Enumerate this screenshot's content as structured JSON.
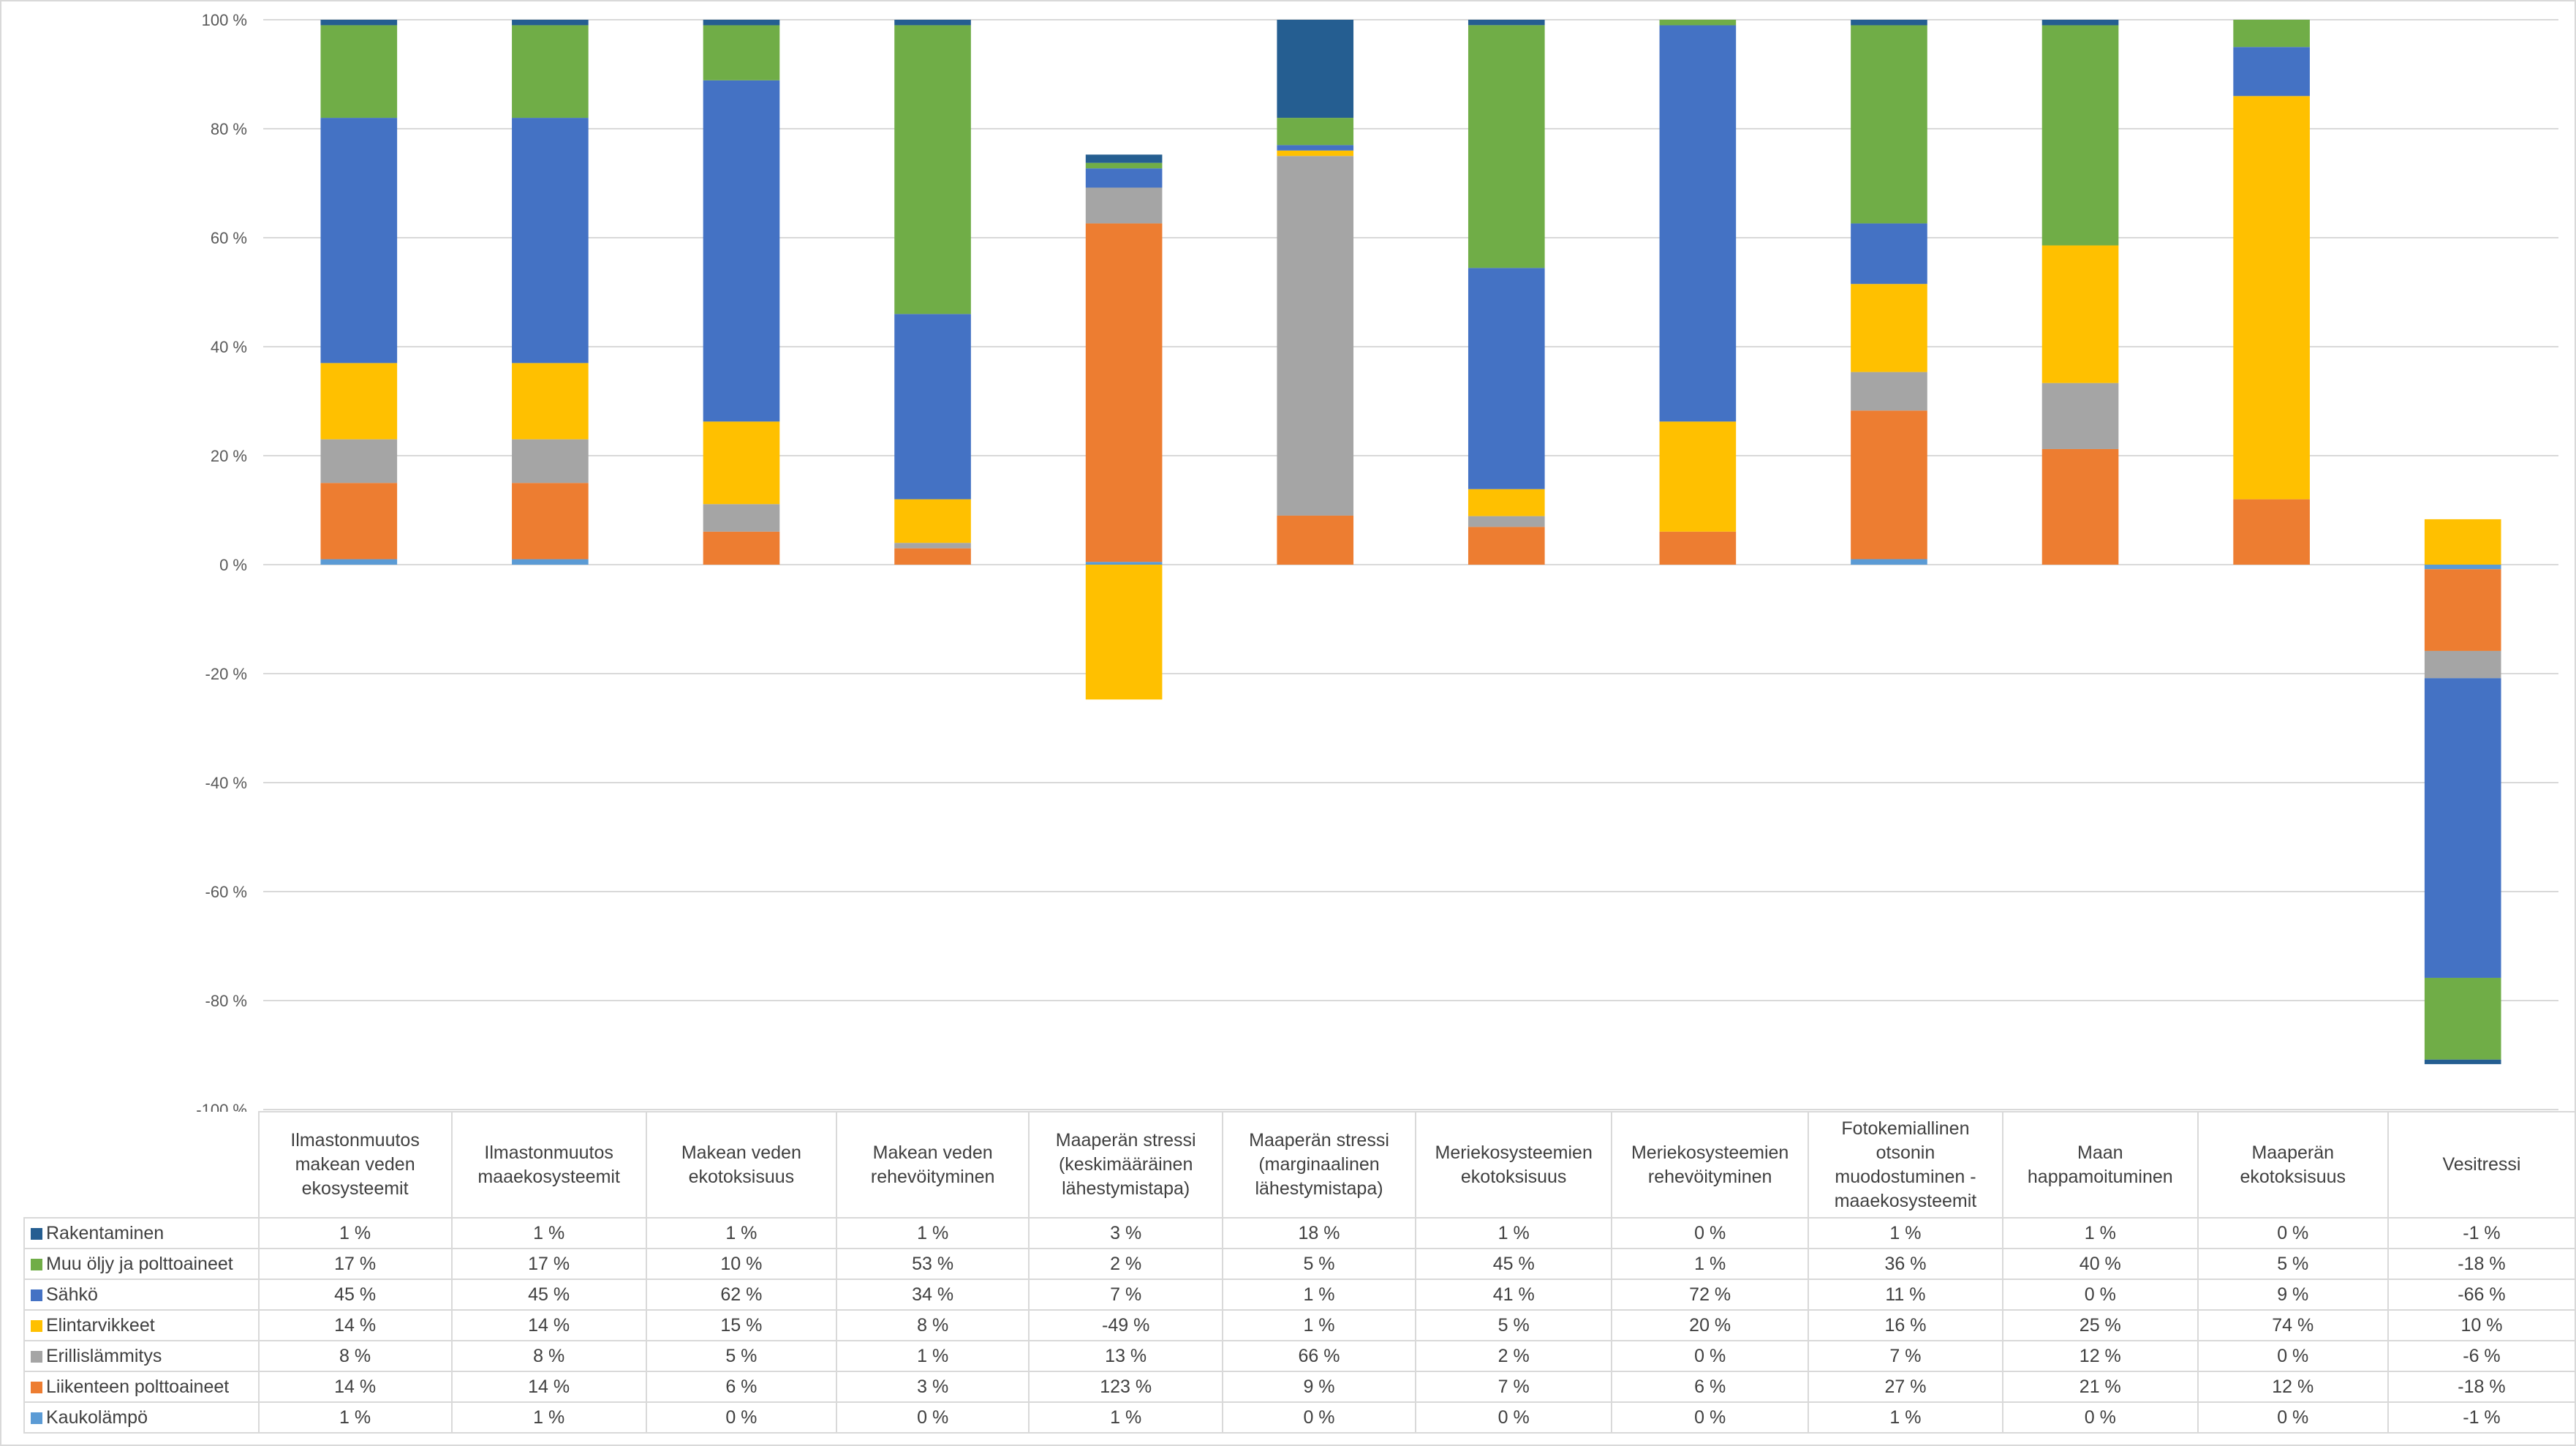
{
  "chart_data": {
    "type": "bar",
    "stacked": true,
    "normalization": "each category's segments plotted as value divided by the sum of absolute values in that category",
    "title": "",
    "xlabel": "",
    "ylabel": "",
    "ylim": [
      -100,
      100
    ],
    "yticks": [
      -100,
      -80,
      -60,
      -40,
      -20,
      0,
      20,
      40,
      60,
      80,
      100
    ],
    "ytick_labels": [
      "-100 %",
      "-80 %",
      "-60 %",
      "-40 %",
      "-20 %",
      "0 %",
      "20 %",
      "40 %",
      "60 %",
      "80 %",
      "100 %"
    ],
    "grid": true,
    "legend_placement": "data-table-left",
    "categories": [
      "Ilmastonmuutos makean veden ekosysteemit",
      "Ilmastonmuutos maaekosysteemit",
      "Makean veden ekotoksisuus",
      "Makean veden rehevöityminen",
      "Maaperän stressi (keskimääräinen lähestymistapa)",
      "Maaperän stressi (marginaalinen lähestymistapa)",
      "Meriekosysteemien ekotoksisuus",
      "Meriekosysteemien rehevöityminen",
      "Fotokemiallinen otsonin muodostuminen - maaekosysteemit",
      "Maan happamoituminen",
      "Maaperän ekotoksisuus",
      "Vesitressi"
    ],
    "stack_order_bottom_to_top": [
      "Kaukolämpö",
      "Liikenteen polttoaineet",
      "Erillislämmitys",
      "Elintarvikkeet",
      "Sähkö",
      "Muu öljy ja polttoaineet",
      "Rakentaminen"
    ],
    "series": [
      {
        "name": "Rakentaminen",
        "color": "#255E91",
        "values": [
          1,
          1,
          1,
          1,
          3,
          18,
          1,
          0,
          1,
          1,
          0,
          -1
        ]
      },
      {
        "name": "Muu öljy ja polttoaineet",
        "color": "#70AD47",
        "values": [
          17,
          17,
          10,
          53,
          2,
          5,
          45,
          1,
          36,
          40,
          5,
          -18
        ]
      },
      {
        "name": "Sähkö",
        "color": "#4472C4",
        "values": [
          45,
          45,
          62,
          34,
          7,
          1,
          41,
          72,
          11,
          0,
          9,
          -66
        ]
      },
      {
        "name": "Elintarvikkeet",
        "color": "#FFC000",
        "values": [
          14,
          14,
          15,
          8,
          -49,
          1,
          5,
          20,
          16,
          25,
          74,
          10
        ]
      },
      {
        "name": "Erillislämmitys",
        "color": "#A5A5A5",
        "values": [
          8,
          8,
          5,
          1,
          13,
          66,
          2,
          0,
          7,
          12,
          0,
          -6
        ]
      },
      {
        "name": "Liikenteen polttoaineet",
        "color": "#ED7D31",
        "values": [
          14,
          14,
          6,
          3,
          123,
          9,
          7,
          6,
          27,
          21,
          12,
          -18
        ]
      },
      {
        "name": "Kaukolämpö",
        "color": "#5B9BD5",
        "values": [
          1,
          1,
          0,
          0,
          1,
          0,
          0,
          0,
          1,
          0,
          0,
          -1
        ]
      }
    ]
  },
  "table": {
    "headers": [
      "Ilmastonmuutos makean veden ekosysteemit",
      "Ilmastonmuutos maaekosysteemit",
      "Makean veden ekotoksisuus",
      "Makean veden rehevöityminen",
      "Maaperän stressi (keskimääräinen lähestymistapa)",
      "Maaperän stressi (marginaalinen lähestymistapa)",
      "Meriekosysteemien ekotoksisuus",
      "Meriekosysteemien rehevöityminen",
      "Fotokemiallinen otsonin muodostuminen - maaekosysteemit",
      "Maan happamoituminen",
      "Maaperän ekotoksisuus",
      "Vesitressi"
    ],
    "rows": [
      {
        "label": "Rakentaminen",
        "color": "#255E91",
        "cells": [
          "1 %",
          "1 %",
          "1 %",
          "1 %",
          "3 %",
          "18 %",
          "1 %",
          "0 %",
          "1 %",
          "1 %",
          "0 %",
          "-1 %"
        ]
      },
      {
        "label": "Muu öljy ja polttoaineet",
        "color": "#70AD47",
        "cells": [
          "17 %",
          "17 %",
          "10 %",
          "53 %",
          "2 %",
          "5 %",
          "45 %",
          "1 %",
          "36 %",
          "40 %",
          "5 %",
          "-18 %"
        ]
      },
      {
        "label": "Sähkö",
        "color": "#4472C4",
        "cells": [
          "45 %",
          "45 %",
          "62 %",
          "34 %",
          "7 %",
          "1 %",
          "41 %",
          "72 %",
          "11 %",
          "0 %",
          "9 %",
          "-66 %"
        ]
      },
      {
        "label": "Elintarvikkeet",
        "color": "#FFC000",
        "cells": [
          "14 %",
          "14 %",
          "15 %",
          "8 %",
          "-49 %",
          "1 %",
          "5 %",
          "20 %",
          "16 %",
          "25 %",
          "74 %",
          "10 %"
        ]
      },
      {
        "label": "Erillislämmitys",
        "color": "#A5A5A5",
        "cells": [
          "8 %",
          "8 %",
          "5 %",
          "1 %",
          "13 %",
          "66 %",
          "2 %",
          "0 %",
          "7 %",
          "12 %",
          "0 %",
          "-6 %"
        ]
      },
      {
        "label": "Liikenteen polttoaineet",
        "color": "#ED7D31",
        "cells": [
          "14 %",
          "14 %",
          "6 %",
          "3 %",
          "123 %",
          "9 %",
          "7 %",
          "6 %",
          "27 %",
          "21 %",
          "12 %",
          "-18 %"
        ]
      },
      {
        "label": "Kaukolämpö",
        "color": "#5B9BD5",
        "cells": [
          "1 %",
          "1 %",
          "0 %",
          "0 %",
          "1 %",
          "0 %",
          "0 %",
          "0 %",
          "1 %",
          "0 %",
          "0 %",
          "-1 %"
        ]
      }
    ]
  }
}
